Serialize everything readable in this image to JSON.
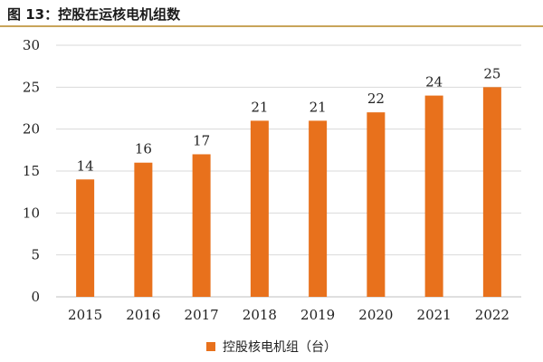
{
  "figure": {
    "title": "图 13：控股在运核电机组数"
  },
  "colors": {
    "bar": "#e8711c",
    "title_rule": "#c8a45a",
    "grid": "#d9d9d9",
    "axis": "#bfbfbf"
  },
  "chart_data": {
    "type": "bar",
    "title": "",
    "xlabel": "",
    "ylabel": "",
    "categories": [
      "2015",
      "2016",
      "2017",
      "2018",
      "2019",
      "2020",
      "2021",
      "2022"
    ],
    "series": [
      {
        "name": "控股核电机组（台）",
        "values": [
          14,
          16,
          17,
          21,
          21,
          22,
          24,
          25
        ]
      }
    ],
    "ylim": [
      0,
      30
    ],
    "yticks": [
      0,
      5,
      10,
      15,
      20,
      25,
      30
    ],
    "grid": true,
    "data_labels": true,
    "legend_position": "bottom"
  }
}
